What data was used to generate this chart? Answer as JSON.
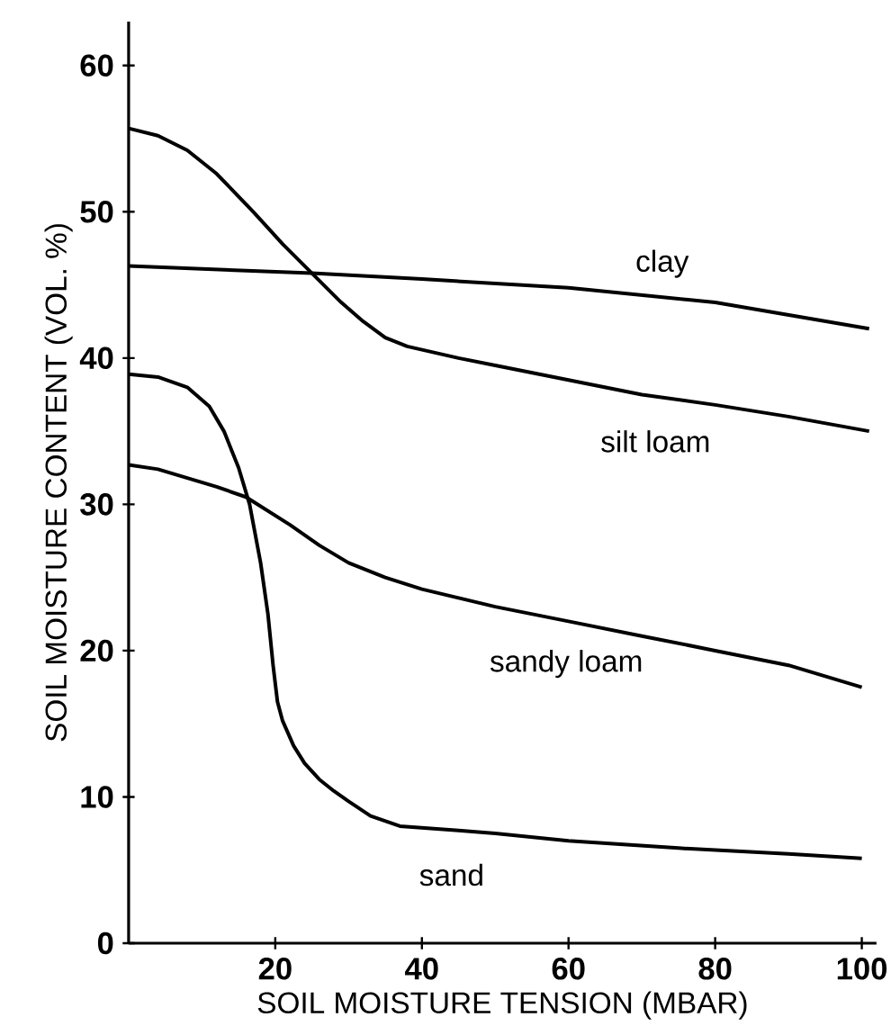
{
  "chart_data": {
    "type": "line",
    "xlabel": "SOIL MOISTURE TENSION (MBAR)",
    "ylabel": "SOIL MOISTURE CONTENT (VOL. %)",
    "xlim": [
      0,
      102
    ],
    "ylim": [
      0,
      63
    ],
    "xticks": [
      20,
      40,
      60,
      80,
      100
    ],
    "yticks": [
      0,
      10,
      20,
      30,
      40,
      50,
      60
    ],
    "grid": false,
    "legend": false,
    "marker": "none",
    "line_style": "solid",
    "series": [
      {
        "name": "clay",
        "color": "#000000",
        "x": [
          0,
          10,
          25,
          40,
          60,
          80,
          101
        ],
        "values": [
          46.3,
          46.1,
          45.8,
          45.4,
          44.8,
          43.8,
          42
        ]
      },
      {
        "name": "silt loam",
        "color": "#000000",
        "x": [
          0,
          4,
          8,
          12,
          17,
          21,
          25,
          29,
          32,
          35,
          38,
          45,
          50,
          60,
          70,
          80,
          90,
          101
        ],
        "values": [
          55.7,
          55.2,
          54.2,
          52.6,
          50,
          47.8,
          45.8,
          43.8,
          42.5,
          41.4,
          40.8,
          40,
          39.5,
          38.5,
          37.5,
          36.8,
          36,
          35
        ]
      },
      {
        "name": "sandy loam",
        "color": "#000000",
        "x": [
          0,
          4,
          8,
          12,
          16,
          22,
          26,
          30,
          35,
          40,
          50,
          60,
          70,
          80,
          90,
          100
        ],
        "values": [
          32.7,
          32.4,
          31.8,
          31.2,
          30.5,
          28.6,
          27.2,
          26,
          25,
          24.2,
          23,
          22,
          21,
          20,
          19,
          17.5
        ]
      },
      {
        "name": "sand",
        "color": "#000000",
        "x": [
          0,
          4,
          8,
          11,
          13,
          15,
          16.5,
          18,
          19,
          19.7,
          20.3,
          21,
          22.5,
          24,
          26,
          28,
          30,
          33,
          37,
          45,
          50,
          60,
          75,
          90,
          100
        ],
        "values": [
          38.9,
          38.7,
          38,
          36.7,
          35,
          32.5,
          30,
          26,
          22.5,
          19,
          16.5,
          15.2,
          13.5,
          12.3,
          11.2,
          10.4,
          9.7,
          8.7,
          8,
          7.7,
          7.5,
          7,
          6.5,
          6.1,
          5.8
        ]
      }
    ]
  }
}
